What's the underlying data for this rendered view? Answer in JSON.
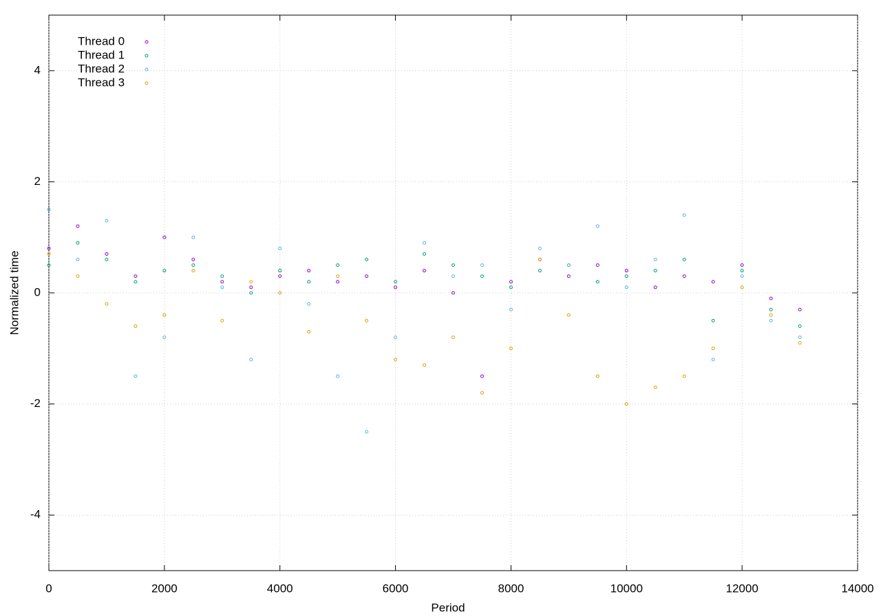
{
  "chart_data": {
    "type": "scatter",
    "x_label": "Period",
    "y_label": "Normalized time",
    "x": [
      0,
      500,
      1000,
      1500,
      2000,
      2500,
      3000,
      3500,
      4000,
      4500,
      5000,
      5500,
      6000,
      6500,
      7000,
      7500,
      8000,
      8500,
      9000,
      9500,
      10000,
      10500,
      11000,
      11500,
      12000,
      12500,
      13000
    ],
    "series": [
      {
        "name": "Thread 0",
        "color": "#9400d3",
        "values": [
          0.8,
          1.2,
          0.7,
          0.3,
          1.0,
          0.6,
          0.2,
          0.1,
          0.3,
          0.4,
          0.2,
          0.3,
          0.1,
          0.4,
          0.0,
          -1.5,
          0.2,
          0.6,
          0.3,
          0.5,
          0.4,
          0.1,
          0.3,
          0.2,
          0.5,
          -0.1,
          -0.3
        ]
      },
      {
        "name": "Thread 1",
        "color": "#009e73",
        "values": [
          0.5,
          0.9,
          0.6,
          0.2,
          0.4,
          0.5,
          0.3,
          0.0,
          0.4,
          0.2,
          0.5,
          0.6,
          0.2,
          0.7,
          0.5,
          0.3,
          0.1,
          0.4,
          0.5,
          0.2,
          0.3,
          0.4,
          0.6,
          -0.5,
          0.4,
          -0.3,
          -0.6
        ]
      },
      {
        "name": "Thread 2",
        "color": "#56b4e9",
        "values": [
          1.5,
          0.6,
          1.3,
          -1.5,
          -0.8,
          1.0,
          0.1,
          -1.2,
          0.8,
          -0.2,
          -1.5,
          -2.5,
          -0.8,
          0.9,
          0.3,
          0.5,
          -0.3,
          0.8,
          0.5,
          1.2,
          0.1,
          0.6,
          1.4,
          -1.2,
          0.3,
          -0.5,
          -0.8
        ]
      },
      {
        "name": "Thread 3",
        "color": "#e69f00",
        "values": [
          0.7,
          0.3,
          -0.2,
          -0.6,
          -0.4,
          0.4,
          -0.5,
          0.2,
          0.0,
          -0.7,
          0.3,
          -0.5,
          -1.2,
          -1.3,
          -0.8,
          -1.8,
          -1.0,
          0.6,
          -0.4,
          -1.5,
          -2.0,
          -1.7,
          -1.5,
          -1.0,
          0.1,
          -0.4,
          -0.9
        ]
      }
    ],
    "xlim": [
      0,
      14000
    ],
    "xticks": [
      0,
      2000,
      4000,
      6000,
      8000,
      10000,
      12000,
      14000
    ],
    "ylim": [
      -5,
      5
    ],
    "yticks": [
      -4,
      -2,
      0,
      2,
      4
    ],
    "grid": true,
    "legend": "top-left"
  }
}
